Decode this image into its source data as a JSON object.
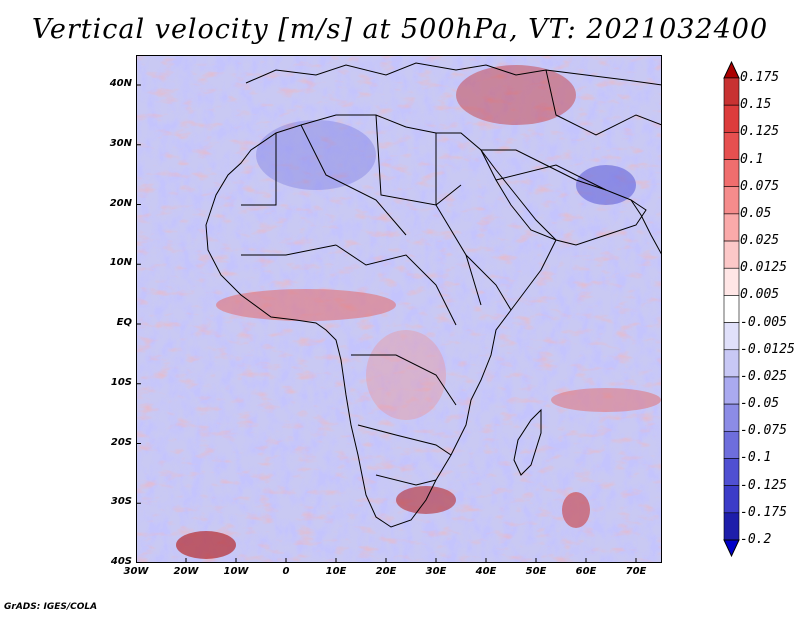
{
  "title": "Vertical velocity [m/s] at 500hPa, VT: 2021032400",
  "credit": "GrADS: IGES/COLA",
  "lat_ticks": [
    "40N",
    "30N",
    "20N",
    "10N",
    "EQ",
    "10S",
    "20S",
    "30S",
    "40S"
  ],
  "lon_ticks": [
    "30W",
    "20W",
    "10W",
    "0",
    "10E",
    "20E",
    "30E",
    "40E",
    "50E",
    "60E",
    "70E"
  ],
  "colorbar": {
    "levels": [
      "0.175",
      "0.15",
      "0.125",
      "0.1",
      "0.075",
      "0.05",
      "0.025",
      "0.0125",
      "0.005",
      "-0.005",
      "-0.0125",
      "-0.025",
      "-0.05",
      "-0.075",
      "-0.1",
      "-0.125",
      "-0.175",
      "-0.2"
    ],
    "colors": [
      "#b41e1e",
      "#c83232",
      "#dc3c3c",
      "#e65050",
      "#f06e6e",
      "#f58c8c",
      "#faaaaa",
      "#fcc8c8",
      "#ffe6e6",
      "#ffffff",
      "#e0e0fa",
      "#c8c8f5",
      "#aaaaf0",
      "#8c8ce6",
      "#6e6edc",
      "#5050d2",
      "#3c3cc8",
      "#1e1eaa",
      "#0000a0"
    ],
    "top_arrow": "#aa0000",
    "bottom_arrow": "#0000c8"
  },
  "map": {
    "lon_range": [
      -30,
      75
    ],
    "lat_range": [
      -40,
      45
    ],
    "border_color": "#000000"
  }
}
